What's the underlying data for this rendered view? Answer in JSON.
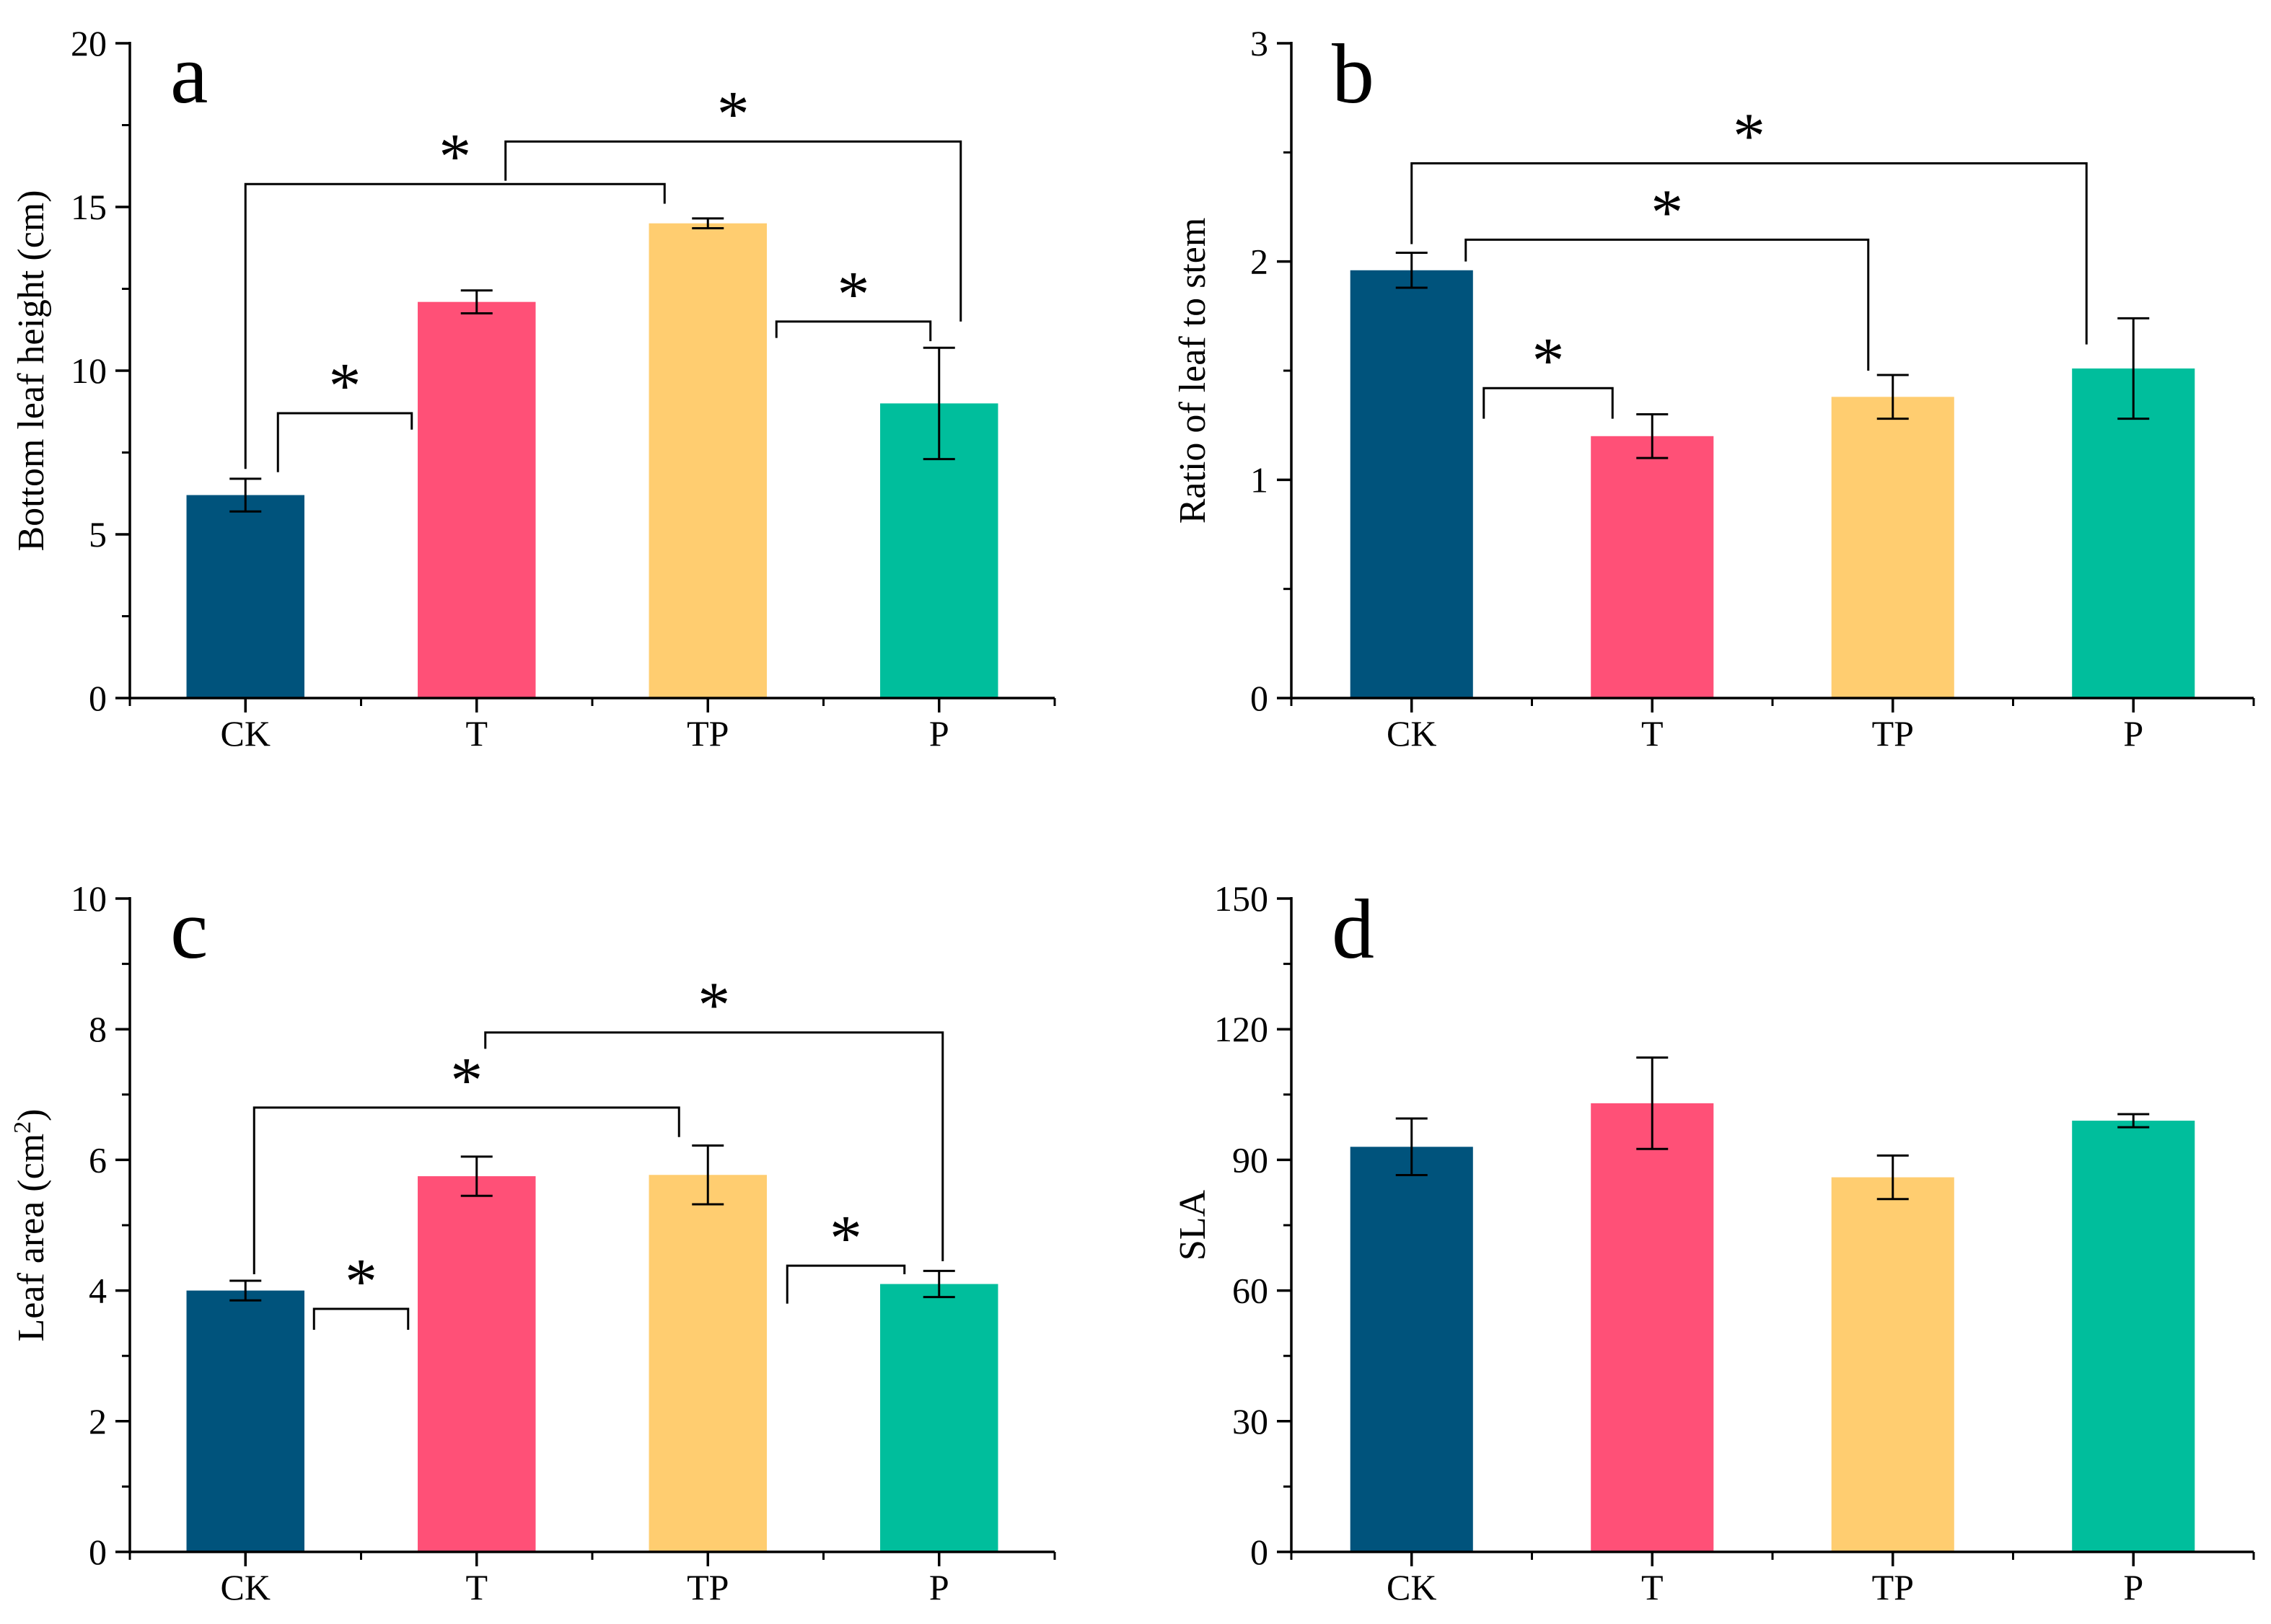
{
  "colors": {
    "CK": "#00537C",
    "T": "#FF5077",
    "TP": "#FFCD70",
    "P": "#00BE9C",
    "axis": "#000000"
  },
  "chart_data": [
    {
      "type": "bar",
      "panel": "a",
      "title": "",
      "xlabel": "",
      "ylabel": "Bottom leaf height (cm)",
      "ylim": [
        0,
        20
      ],
      "yticks": [
        0,
        5,
        10,
        15,
        20
      ],
      "categories": [
        "CK",
        "T",
        "TP",
        "P"
      ],
      "values": [
        6.2,
        12.1,
        14.5,
        9.0
      ],
      "errors": [
        0.5,
        0.35,
        0.15,
        1.7
      ],
      "significance": [
        {
          "from": "CK",
          "to": "T",
          "label": "*"
        },
        {
          "from": "CK",
          "to": "TP",
          "label": "*"
        },
        {
          "from": "T",
          "to": "P",
          "label": "*"
        },
        {
          "from": "TP",
          "to": "P",
          "label": "*"
        }
      ]
    },
    {
      "type": "bar",
      "panel": "b",
      "title": "",
      "xlabel": "",
      "ylabel": "Ratio of leaf to stem",
      "ylim": [
        0,
        3
      ],
      "yticks": [
        0,
        1,
        2,
        3
      ],
      "categories": [
        "CK",
        "T",
        "TP",
        "P"
      ],
      "values": [
        1.96,
        1.2,
        1.38,
        1.51
      ],
      "errors": [
        0.08,
        0.1,
        0.1,
        0.23
      ],
      "significance": [
        {
          "from": "CK",
          "to": "T",
          "label": "*"
        },
        {
          "from": "CK",
          "to": "TP",
          "label": "*"
        },
        {
          "from": "CK",
          "to": "P",
          "label": "*"
        }
      ]
    },
    {
      "type": "bar",
      "panel": "c",
      "title": "",
      "xlabel": "",
      "ylabel": "Leaf area (cm",
      "ylabel_sup": "2",
      "ylabel_end": ")",
      "ylim": [
        0,
        10
      ],
      "yticks": [
        0,
        2,
        4,
        6,
        8,
        10
      ],
      "categories": [
        "CK",
        "T",
        "TP",
        "P"
      ],
      "values": [
        4.0,
        5.75,
        5.77,
        4.1
      ],
      "errors": [
        0.15,
        0.3,
        0.45,
        0.2
      ],
      "significance": [
        {
          "from": "CK",
          "to": "T",
          "label": "*"
        },
        {
          "from": "CK",
          "to": "TP",
          "label": "*"
        },
        {
          "from": "T",
          "to": "P",
          "label": "*"
        },
        {
          "from": "TP",
          "to": "P",
          "label": "*"
        }
      ]
    },
    {
      "type": "bar",
      "panel": "d",
      "title": "",
      "xlabel": "",
      "ylabel": "SLA",
      "ylim": [
        0,
        150
      ],
      "yticks": [
        0,
        30,
        60,
        90,
        120,
        150
      ],
      "categories": [
        "CK",
        "T",
        "TP",
        "P"
      ],
      "values": [
        93,
        103,
        86,
        99
      ],
      "errors": [
        6.5,
        10.5,
        5.0,
        1.5
      ],
      "significance": []
    }
  ]
}
